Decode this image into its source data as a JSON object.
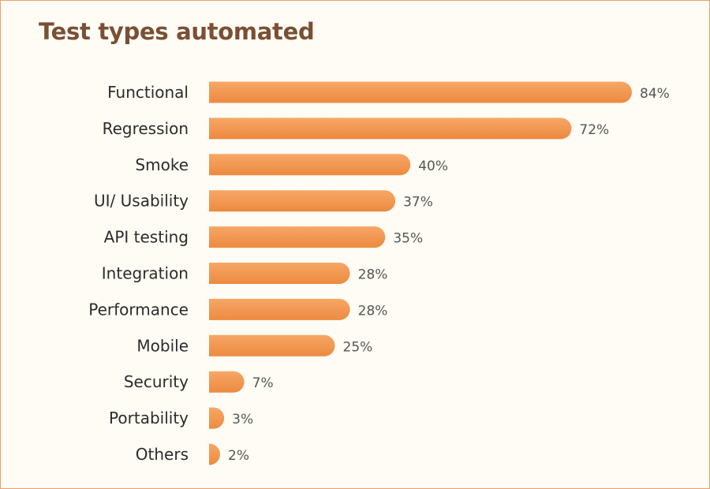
{
  "colors": {
    "bar_top": "#f7a766",
    "bar_bottom": "#ec8a40",
    "title": "#7a4f34",
    "frame": "#e9a06a",
    "background": "#fffcf5"
  },
  "chart_data": {
    "type": "bar",
    "orientation": "horizontal",
    "title": "Test types automated",
    "xlabel": "",
    "ylabel": "",
    "categories": [
      "Functional",
      "Regression",
      "Smoke",
      "UI/ Usability",
      "API testing",
      "Integration",
      "Performance",
      "Mobile",
      "Security",
      "Portability",
      "Others"
    ],
    "values": [
      84,
      72,
      40,
      37,
      35,
      28,
      28,
      25,
      7,
      3,
      2
    ],
    "value_labels": [
      "84%",
      "72%",
      "40%",
      "37%",
      "35%",
      "28%",
      "28%",
      "25%",
      "7%",
      "3%",
      "2%"
    ],
    "unit": "%",
    "xlim": [
      0,
      84
    ],
    "grid": false,
    "legend": "none"
  }
}
